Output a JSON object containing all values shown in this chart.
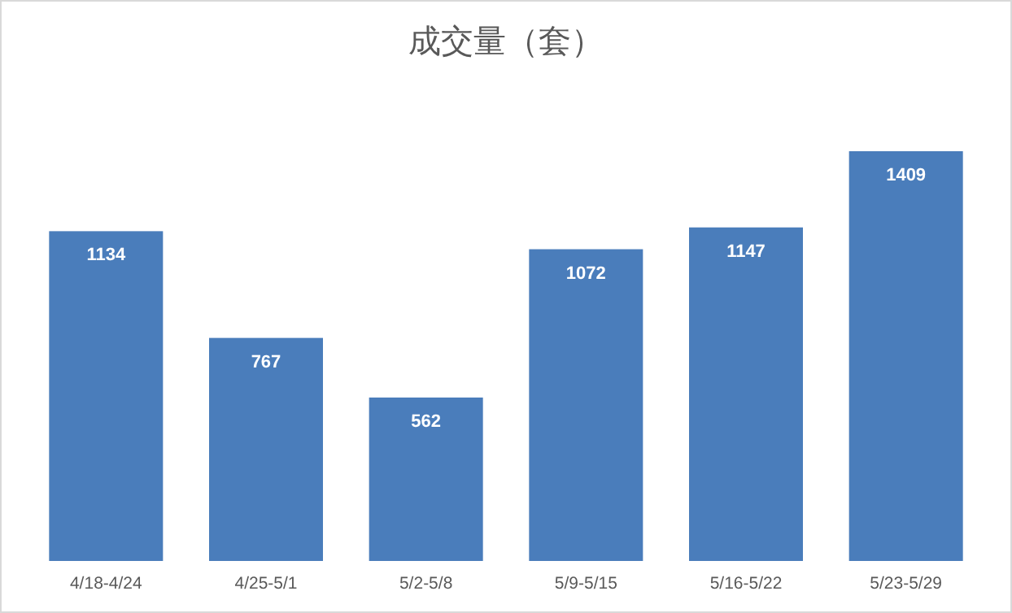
{
  "chart_data": {
    "type": "bar",
    "title": "成交量（套）",
    "categories": [
      "4/18-4/24",
      "4/25-5/1",
      "5/2-5/8",
      "5/9-5/15",
      "5/16-5/22",
      "5/23-5/29"
    ],
    "values": [
      1134,
      767,
      562,
      1072,
      1147,
      1409
    ],
    "color": "#4a7dbb",
    "data_labels": true
  }
}
